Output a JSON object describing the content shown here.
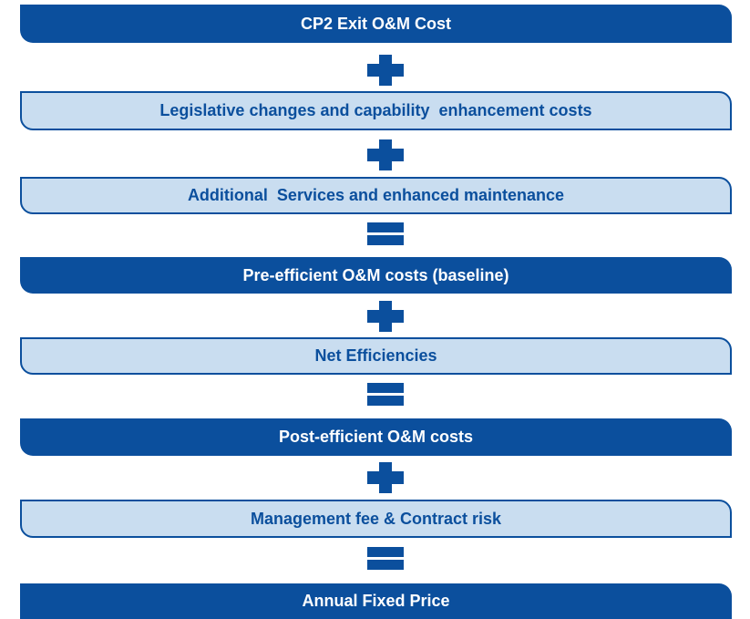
{
  "nodes": [
    {
      "label": "CP2 Exit O&M Cost"
    },
    {
      "label": "Legislative changes and capability  enhancement costs"
    },
    {
      "label": "Additional  Services and enhanced maintenance"
    },
    {
      "label": "Pre-efficient O&M costs (baseline)"
    },
    {
      "label": "Net Efficiencies"
    },
    {
      "label": "Post-efficient O&M costs"
    },
    {
      "label": "Management fee & Contract risk"
    },
    {
      "label": "Annual Fixed Price"
    }
  ]
}
